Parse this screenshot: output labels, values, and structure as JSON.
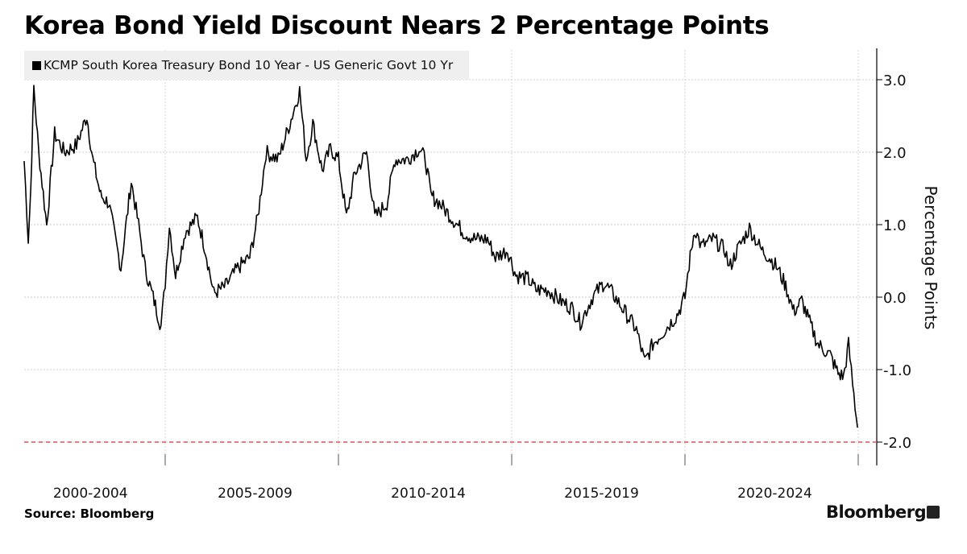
{
  "chart_data": {
    "type": "line",
    "title": "Korea Bond Yield Discount Nears 2 Percentage Points",
    "legend": [
      "KCMP South Korea Treasury Bond 10 Year - US Generic Govt 10 Yr"
    ],
    "legend_placement": "top-left",
    "xlabel": "",
    "ylabel": "Percentage Points",
    "ylim": [
      -2.35,
      3.5
    ],
    "yticks": [
      "3.0",
      "2.0",
      "1.0",
      "0.0",
      "-1.0",
      "-2.0"
    ],
    "ytick_values": [
      3,
      2,
      1,
      0,
      -1,
      -2
    ],
    "xlim": [
      2000.93,
      2025.05
    ],
    "xtick_labels": [
      "2000-2004",
      "2005-2009",
      "2010-2014",
      "2015-2019",
      "2020-2024"
    ],
    "xtick_centers": [
      2002.75,
      2007.5,
      2012.5,
      2017.5,
      2022.5
    ],
    "xgrid_values": [
      2005,
      2010,
      2015,
      2020,
      2025
    ],
    "reference_line": {
      "value": -2.0,
      "color": "#e05252",
      "style": "dashed"
    },
    "grid": true,
    "series": [
      {
        "name": "KCMP South Korea Treasury Bond 10 Year - US Generic Govt 10 Yr",
        "color": "#000000",
        "x": [
          2000.93,
          2001.05,
          2001.12,
          2001.21,
          2001.35,
          2001.58,
          2001.81,
          2002.09,
          2002.44,
          2002.74,
          2002.91,
          2003.14,
          2003.37,
          2003.72,
          2004.02,
          2004.23,
          2004.42,
          2004.65,
          2004.88,
          2005.0,
          2005.12,
          2005.3,
          2005.58,
          2005.93,
          2006.16,
          2006.4,
          2006.74,
          2007.09,
          2007.44,
          2007.67,
          2007.91,
          2008.26,
          2008.6,
          2008.88,
          2009.07,
          2009.26,
          2009.53,
          2009.77,
          2010.0,
          2010.23,
          2010.47,
          2010.81,
          2011.05,
          2011.4,
          2011.63,
          2011.98,
          2012.33,
          2012.51,
          2012.67,
          2012.91,
          2013.26,
          2013.6,
          2013.95,
          2014.3,
          2014.53,
          2014.88,
          2015.12,
          2015.47,
          2015.7,
          2016.05,
          2016.4,
          2016.74,
          2016.98,
          2017.33,
          2017.67,
          2017.91,
          2018.26,
          2018.6,
          2018.84,
          2019.07,
          2019.42,
          2019.77,
          2020.0,
          2020.12,
          2020.28,
          2020.47,
          2020.81,
          2021.16,
          2021.28,
          2021.51,
          2021.86,
          2022.21,
          2022.44,
          2022.67,
          2022.91,
          2023.14,
          2023.37,
          2023.6,
          2023.84,
          2024.19,
          2024.42,
          2024.58,
          2024.72,
          2024.84,
          2024.98
        ],
        "values": [
          1.88,
          0.8,
          1.5,
          2.9,
          2.0,
          1.0,
          2.25,
          2.0,
          2.1,
          2.5,
          1.9,
          1.4,
          1.3,
          0.4,
          1.6,
          1.0,
          0.4,
          0.0,
          -0.4,
          0.2,
          1.0,
          0.3,
          0.9,
          1.1,
          0.65,
          0.05,
          0.15,
          0.4,
          0.55,
          1.1,
          2.0,
          1.9,
          2.4,
          2.85,
          1.9,
          2.4,
          1.75,
          2.05,
          1.9,
          1.1,
          1.7,
          2.0,
          1.1,
          1.3,
          1.9,
          1.9,
          2.05,
          1.9,
          1.4,
          1.3,
          1.1,
          0.9,
          0.8,
          0.8,
          0.55,
          0.65,
          0.3,
          0.25,
          0.1,
          0.1,
          -0.05,
          -0.15,
          -0.35,
          0.0,
          0.2,
          0.05,
          -0.2,
          -0.45,
          -0.9,
          -0.65,
          -0.45,
          -0.25,
          0.0,
          0.45,
          0.95,
          0.7,
          0.8,
          0.65,
          0.4,
          0.65,
          0.95,
          0.65,
          0.55,
          0.4,
          0.15,
          -0.2,
          -0.05,
          -0.35,
          -0.65,
          -0.8,
          -1.05,
          -1.1,
          -0.65,
          -1.2,
          -1.8
        ]
      }
    ]
  },
  "footer": {
    "source": "Source: Bloomberg",
    "brand": "Bloomberg"
  }
}
